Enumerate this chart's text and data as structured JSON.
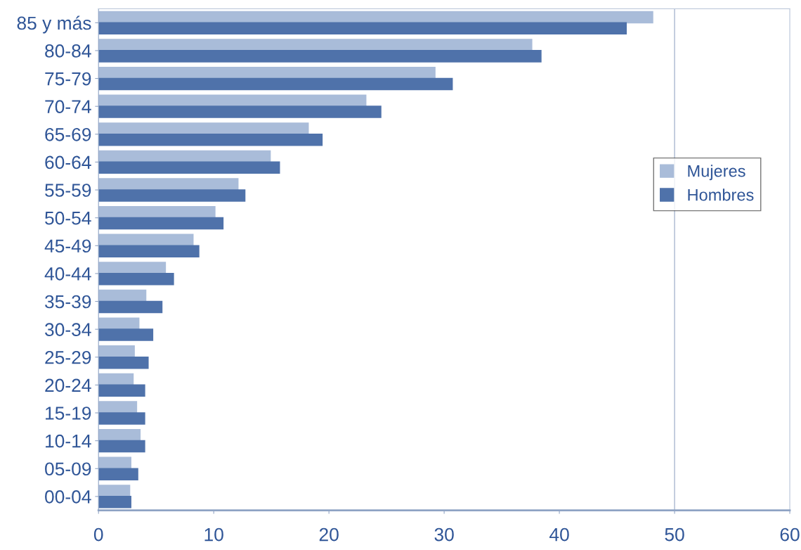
{
  "chart_data": {
    "type": "bar",
    "orientation": "horizontal",
    "categories": [
      "85 y más",
      "80-84",
      "75-79",
      "70-74",
      "65-69",
      "60-64",
      "55-59",
      "50-54",
      "45-49",
      "40-44",
      "35-39",
      "30-34",
      "25-29",
      "20-24",
      "15-19",
      "10-14",
      "05-09",
      "00-04"
    ],
    "series": [
      {
        "name": "Mujeres",
        "color": "#a9bcd9",
        "values": [
          48.1,
          37.6,
          29.2,
          23.2,
          18.2,
          14.9,
          12.1,
          10.1,
          8.2,
          5.8,
          4.1,
          3.5,
          3.1,
          3.0,
          3.3,
          3.6,
          2.8,
          2.7
        ]
      },
      {
        "name": "Hombres",
        "color": "#4f72aa",
        "values": [
          45.8,
          38.4,
          30.7,
          24.5,
          19.4,
          15.7,
          12.7,
          10.8,
          8.7,
          6.5,
          5.5,
          4.7,
          4.3,
          4.0,
          4.0,
          4.0,
          3.4,
          2.8
        ]
      }
    ],
    "xlim": [
      0,
      60
    ],
    "xticks": [
      0,
      10,
      20,
      30,
      40,
      50,
      60
    ],
    "ref_lines": [
      {
        "axis": "x",
        "value": 50,
        "color": "#b8c4d8"
      }
    ],
    "grid": false,
    "legend": "center right"
  }
}
